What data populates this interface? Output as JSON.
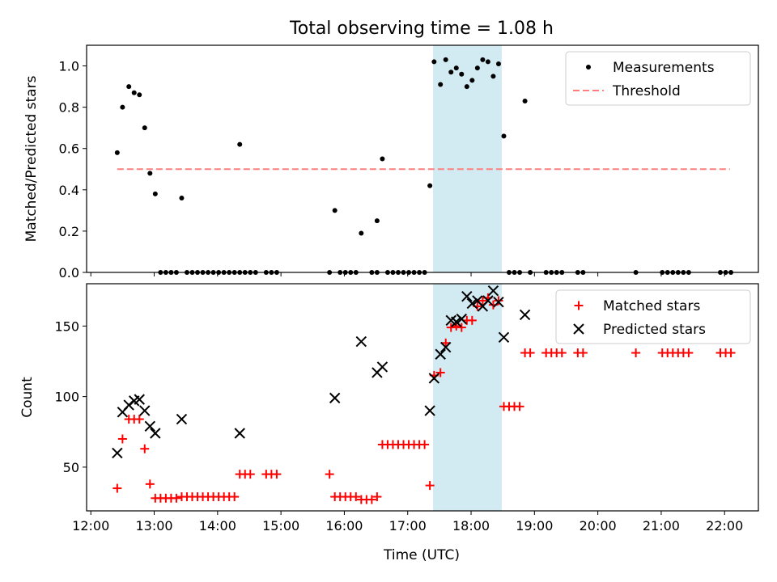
{
  "figure": {
    "title": "Total observing time = 1.08 h"
  },
  "chart_data": [
    {
      "type": "scatter",
      "title": "Total observing time = 1.08 h",
      "xlabel": "",
      "ylabel": "Matched/Predicted stars",
      "xlim": [
        "11:56",
        "22:32"
      ],
      "ylim": [
        0,
        1.1
      ],
      "yticks": [
        0.0,
        0.2,
        0.4,
        0.6,
        0.8,
        1.0
      ],
      "ytick_labels": [
        "0.0",
        "0.2",
        "0.4",
        "0.6",
        "0.8",
        "1.0"
      ],
      "grid": false,
      "legend_placement": "top-right",
      "highlight_span": {
        "start": "17:24",
        "end": "18:29",
        "color": "#add8e6"
      },
      "series": [
        {
          "name": "Measurements",
          "kind": "scatter",
          "marker": "dot",
          "color": "#000000",
          "points": [
            [
              "12:25",
              0.58
            ],
            [
              "12:30",
              0.8
            ],
            [
              "12:36",
              0.9
            ],
            [
              "12:41",
              0.87
            ],
            [
              "12:46",
              0.86
            ],
            [
              "12:51",
              0.7
            ],
            [
              "12:56",
              0.48
            ],
            [
              "13:01",
              0.38
            ],
            [
              "13:06",
              0.0
            ],
            [
              "13:11",
              0.0
            ],
            [
              "13:16",
              0.0
            ],
            [
              "13:21",
              0.0
            ],
            [
              "13:26",
              0.36
            ],
            [
              "13:31",
              0.0
            ],
            [
              "13:36",
              0.0
            ],
            [
              "13:41",
              0.0
            ],
            [
              "13:46",
              0.0
            ],
            [
              "13:51",
              0.0
            ],
            [
              "13:56",
              0.0
            ],
            [
              "14:01",
              0.0
            ],
            [
              "14:06",
              0.0
            ],
            [
              "14:11",
              0.0
            ],
            [
              "14:16",
              0.0
            ],
            [
              "14:21",
              0.0
            ],
            [
              "14:26",
              0.0
            ],
            [
              "14:31",
              0.0
            ],
            [
              "14:21",
              0.62
            ],
            [
              "14:36",
              0.0
            ],
            [
              "14:46",
              0.0
            ],
            [
              "14:51",
              0.0
            ],
            [
              "14:56",
              0.0
            ],
            [
              "15:46",
              0.0
            ],
            [
              "15:51",
              0.3
            ],
            [
              "15:56",
              0.0
            ],
            [
              "16:01",
              0.0
            ],
            [
              "16:06",
              0.0
            ],
            [
              "16:11",
              0.0
            ],
            [
              "16:16",
              0.19
            ],
            [
              "16:26",
              0.0
            ],
            [
              "16:31",
              0.0
            ],
            [
              "16:31",
              0.25
            ],
            [
              "16:36",
              0.55
            ],
            [
              "16:41",
              0.0
            ],
            [
              "16:46",
              0.0
            ],
            [
              "16:51",
              0.0
            ],
            [
              "16:56",
              0.0
            ],
            [
              "17:01",
              0.0
            ],
            [
              "17:06",
              0.0
            ],
            [
              "17:11",
              0.0
            ],
            [
              "17:16",
              0.0
            ],
            [
              "17:21",
              0.42
            ],
            [
              "17:25",
              1.02
            ],
            [
              "17:31",
              0.91
            ],
            [
              "17:36",
              1.03
            ],
            [
              "17:41",
              0.97
            ],
            [
              "17:46",
              0.99
            ],
            [
              "17:51",
              0.96
            ],
            [
              "17:56",
              0.9
            ],
            [
              "18:01",
              0.93
            ],
            [
              "18:06",
              0.99
            ],
            [
              "18:11",
              1.03
            ],
            [
              "18:16",
              1.02
            ],
            [
              "18:21",
              0.95
            ],
            [
              "18:26",
              1.01
            ],
            [
              "18:31",
              0.66
            ],
            [
              "18:36",
              0.0
            ],
            [
              "18:41",
              0.0
            ],
            [
              "18:46",
              0.0
            ],
            [
              "18:51",
              0.83
            ],
            [
              "18:56",
              0.0
            ],
            [
              "19:11",
              0.0
            ],
            [
              "19:16",
              0.0
            ],
            [
              "19:21",
              0.0
            ],
            [
              "19:26",
              0.0
            ],
            [
              "19:41",
              0.0
            ],
            [
              "19:46",
              0.0
            ],
            [
              "20:36",
              0.0
            ],
            [
              "21:01",
              0.0
            ],
            [
              "21:06",
              0.0
            ],
            [
              "21:11",
              0.0
            ],
            [
              "21:16",
              0.0
            ],
            [
              "21:21",
              0.0
            ],
            [
              "21:26",
              0.0
            ],
            [
              "21:56",
              0.0
            ],
            [
              "22:01",
              0.0
            ],
            [
              "22:06",
              0.0
            ]
          ]
        },
        {
          "name": "Threshold",
          "kind": "line",
          "dash": true,
          "color": "#ff7f7f",
          "points": [
            [
              "12:25",
              0.5
            ],
            [
              "22:05",
              0.5
            ]
          ]
        }
      ]
    },
    {
      "type": "scatter",
      "title": "",
      "xlabel": "Time (UTC)",
      "ylabel": "Count",
      "xlim": [
        "11:56",
        "22:32"
      ],
      "ylim": [
        19,
        180
      ],
      "xticks": [
        "12:00",
        "13:00",
        "14:00",
        "15:00",
        "16:00",
        "17:00",
        "18:00",
        "19:00",
        "20:00",
        "21:00",
        "22:00"
      ],
      "yticks": [
        50,
        100,
        150
      ],
      "ytick_labels": [
        "50",
        "100",
        "150"
      ],
      "grid": false,
      "legend_placement": "top-right",
      "highlight_span": {
        "start": "17:24",
        "end": "18:29",
        "color": "#add8e6"
      },
      "series": [
        {
          "name": "Matched stars",
          "kind": "scatter",
          "marker": "plus",
          "color": "#ff0000",
          "points": [
            [
              "12:25",
              35
            ],
            [
              "12:30",
              70
            ],
            [
              "12:36",
              84
            ],
            [
              "12:41",
              84
            ],
            [
              "12:46",
              84
            ],
            [
              "12:51",
              63
            ],
            [
              "12:56",
              38
            ],
            [
              "13:01",
              28
            ],
            [
              "13:06",
              28
            ],
            [
              "13:11",
              28
            ],
            [
              "13:16",
              28
            ],
            [
              "13:21",
              28
            ],
            [
              "13:26",
              29
            ],
            [
              "13:31",
              29
            ],
            [
              "13:36",
              29
            ],
            [
              "13:41",
              29
            ],
            [
              "13:46",
              29
            ],
            [
              "13:51",
              29
            ],
            [
              "13:56",
              29
            ],
            [
              "14:01",
              29
            ],
            [
              "14:06",
              29
            ],
            [
              "14:11",
              29
            ],
            [
              "14:16",
              29
            ],
            [
              "14:21",
              45
            ],
            [
              "14:26",
              45
            ],
            [
              "14:31",
              45
            ],
            [
              "14:46",
              45
            ],
            [
              "14:51",
              45
            ],
            [
              "14:56",
              45
            ],
            [
              "15:46",
              45
            ],
            [
              "15:51",
              29
            ],
            [
              "15:56",
              29
            ],
            [
              "16:01",
              29
            ],
            [
              "16:06",
              29
            ],
            [
              "16:11",
              29
            ],
            [
              "16:16",
              27
            ],
            [
              "16:21",
              27
            ],
            [
              "16:26",
              27
            ],
            [
              "16:31",
              29
            ],
            [
              "16:36",
              66
            ],
            [
              "16:41",
              66
            ],
            [
              "16:46",
              66
            ],
            [
              "16:51",
              66
            ],
            [
              "16:56",
              66
            ],
            [
              "17:01",
              66
            ],
            [
              "17:06",
              66
            ],
            [
              "17:11",
              66
            ],
            [
              "17:16",
              66
            ],
            [
              "17:21",
              37
            ],
            [
              "17:25",
              115
            ],
            [
              "17:31",
              117
            ],
            [
              "17:36",
              138
            ],
            [
              "17:41",
              149
            ],
            [
              "17:46",
              150
            ],
            [
              "17:51",
              149
            ],
            [
              "17:56",
              154
            ],
            [
              "18:01",
              154
            ],
            [
              "18:06",
              164
            ],
            [
              "18:11",
              168
            ],
            [
              "18:16",
              170
            ],
            [
              "18:21",
              165
            ],
            [
              "18:26",
              168
            ],
            [
              "18:31",
              93
            ],
            [
              "18:36",
              93
            ],
            [
              "18:41",
              93
            ],
            [
              "18:46",
              93
            ],
            [
              "18:51",
              131
            ],
            [
              "18:56",
              131
            ],
            [
              "19:11",
              131
            ],
            [
              "19:16",
              131
            ],
            [
              "19:21",
              131
            ],
            [
              "19:26",
              131
            ],
            [
              "19:41",
              131
            ],
            [
              "19:46",
              131
            ],
            [
              "20:36",
              131
            ],
            [
              "21:01",
              131
            ],
            [
              "21:06",
              131
            ],
            [
              "21:11",
              131
            ],
            [
              "21:16",
              131
            ],
            [
              "21:21",
              131
            ],
            [
              "21:26",
              131
            ],
            [
              "21:56",
              131
            ],
            [
              "22:01",
              131
            ],
            [
              "22:06",
              131
            ]
          ]
        },
        {
          "name": "Predicted stars",
          "kind": "scatter",
          "marker": "x",
          "color": "#000000",
          "points": [
            [
              "12:25",
              60
            ],
            [
              "12:30",
              89
            ],
            [
              "12:36",
              94
            ],
            [
              "12:41",
              97
            ],
            [
              "12:46",
              98
            ],
            [
              "12:51",
              90
            ],
            [
              "12:56",
              79
            ],
            [
              "13:01",
              74
            ],
            [
              "13:26",
              84
            ],
            [
              "14:21",
              74
            ],
            [
              "15:51",
              99
            ],
            [
              "16:16",
              139
            ],
            [
              "16:31",
              117
            ],
            [
              "16:36",
              121
            ],
            [
              "17:21",
              90
            ],
            [
              "17:25",
              113
            ],
            [
              "17:31",
              130
            ],
            [
              "17:36",
              135
            ],
            [
              "17:41",
              154
            ],
            [
              "17:46",
              153
            ],
            [
              "17:51",
              155
            ],
            [
              "17:56",
              171
            ],
            [
              "18:01",
              166
            ],
            [
              "18:06",
              168
            ],
            [
              "18:11",
              164
            ],
            [
              "18:16",
              168
            ],
            [
              "18:21",
              175
            ],
            [
              "18:26",
              167
            ],
            [
              "18:31",
              142
            ],
            [
              "18:51",
              158
            ]
          ]
        }
      ]
    }
  ]
}
